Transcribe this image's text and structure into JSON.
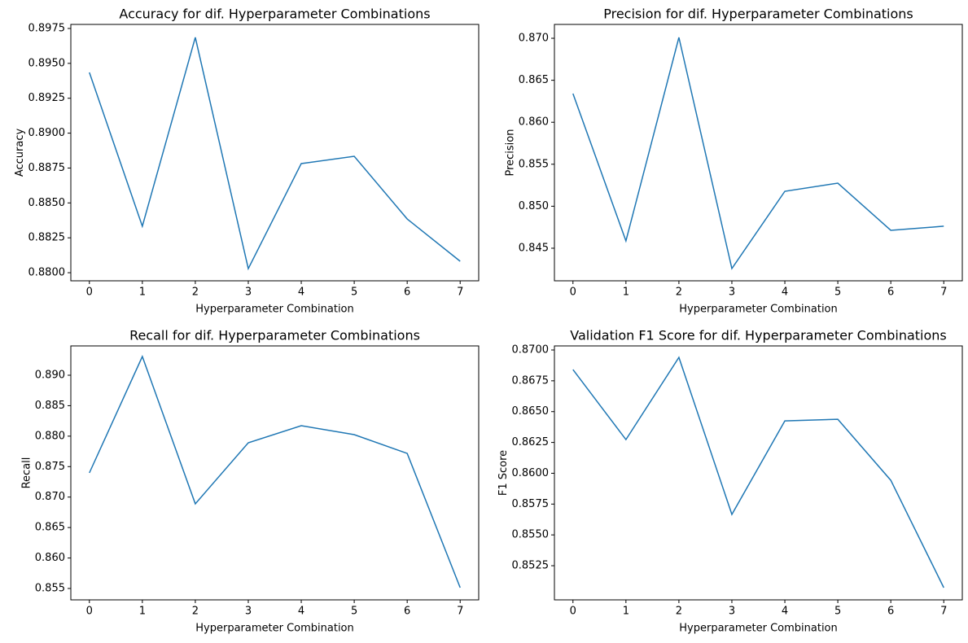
{
  "chart_data": [
    {
      "type": "line",
      "title": "Accuracy for dif. Hyperparameter Combinations",
      "xlabel": "Hyperparameter Combination",
      "ylabel": "Accuracy",
      "x": [
        0,
        1,
        2,
        3,
        4,
        5,
        6,
        7
      ],
      "values": [
        0.89435,
        0.88333,
        0.89686,
        0.88029,
        0.88782,
        0.88834,
        0.88385,
        0.88082
      ],
      "color": "#1f77b4",
      "xlim": [
        -0.35,
        7.35
      ],
      "xticks": [
        0,
        1,
        2,
        3,
        4,
        5,
        6,
        7
      ],
      "ylim": [
        0.87942,
        0.89779
      ],
      "yticks": [
        {
          "value": 0.88,
          "label": "0.8800"
        },
        0.8825,
        {
          "value": 0.885,
          "label": "0.8850"
        },
        0.8875,
        {
          "value": 0.89,
          "label": "0.8900"
        },
        0.8925,
        {
          "value": 0.895,
          "label": "0.8950"
        },
        0.8975
      ]
    },
    {
      "type": "line",
      "title": "Precision for dif. Hyperparameter Combinations",
      "xlabel": "Hyperparameter Combination",
      "ylabel": "Precision",
      "x": [
        0,
        1,
        2,
        3,
        4,
        5,
        6,
        7
      ],
      "values": [
        0.86341,
        0.84587,
        0.8701,
        0.84258,
        0.85178,
        0.85275,
        0.84713,
        0.84762
      ],
      "color": "#1f77b4",
      "xlim": [
        -0.35,
        7.35
      ],
      "xticks": [
        0,
        1,
        2,
        3,
        4,
        5,
        6,
        7
      ],
      "ylim": [
        0.84112,
        0.87165
      ],
      "yticks": [
        0.845,
        {
          "value": 0.85,
          "label": "0.850"
        },
        0.855,
        {
          "value": 0.86,
          "label": "0.860"
        },
        0.865,
        {
          "value": 0.87,
          "label": "0.870"
        }
      ]
    },
    {
      "type": "line",
      "title": "Recall for dif. Hyperparameter Combinations",
      "xlabel": "Hyperparameter Combination",
      "ylabel": "Recall",
      "x": [
        0,
        1,
        2,
        3,
        4,
        5,
        6,
        7
      ],
      "values": [
        0.87397,
        0.89307,
        0.86889,
        0.87891,
        0.88172,
        0.88025,
        0.87717,
        0.85513
      ],
      "color": "#1f77b4",
      "xlim": [
        -0.35,
        7.35
      ],
      "xticks": [
        0,
        1,
        2,
        3,
        4,
        5,
        6,
        7
      ],
      "ylim": [
        0.85313,
        0.89481
      ],
      "yticks": [
        0.855,
        {
          "value": 0.86,
          "label": "0.860"
        },
        0.865,
        {
          "value": 0.87,
          "label": "0.870"
        },
        0.875,
        {
          "value": 0.88,
          "label": "0.880"
        },
        0.885,
        {
          "value": 0.89,
          "label": "0.890"
        }
      ]
    },
    {
      "type": "line",
      "title": "Validation F1 Score for dif. Hyperparameter Combinations",
      "xlabel": "Hyperparameter Combination",
      "ylabel": "F1 Score",
      "x": [
        0,
        1,
        2,
        3,
        4,
        5,
        6,
        7
      ],
      "values": [
        0.86841,
        0.86273,
        0.8694,
        0.85666,
        0.86425,
        0.86438,
        0.85943,
        0.85072
      ],
      "color": "#1f77b4",
      "xlim": [
        -0.35,
        7.35
      ],
      "xticks": [
        0,
        1,
        2,
        3,
        4,
        5,
        6,
        7
      ],
      "ylim": [
        0.84973,
        0.87033
      ],
      "yticks": [
        0.8525,
        {
          "value": 0.855,
          "label": "0.8550"
        },
        0.8575,
        {
          "value": 0.86,
          "label": "0.8600"
        },
        0.8625,
        {
          "value": 0.865,
          "label": "0.8650"
        },
        0.8675,
        {
          "value": 0.87,
          "label": "0.8700"
        }
      ]
    }
  ]
}
